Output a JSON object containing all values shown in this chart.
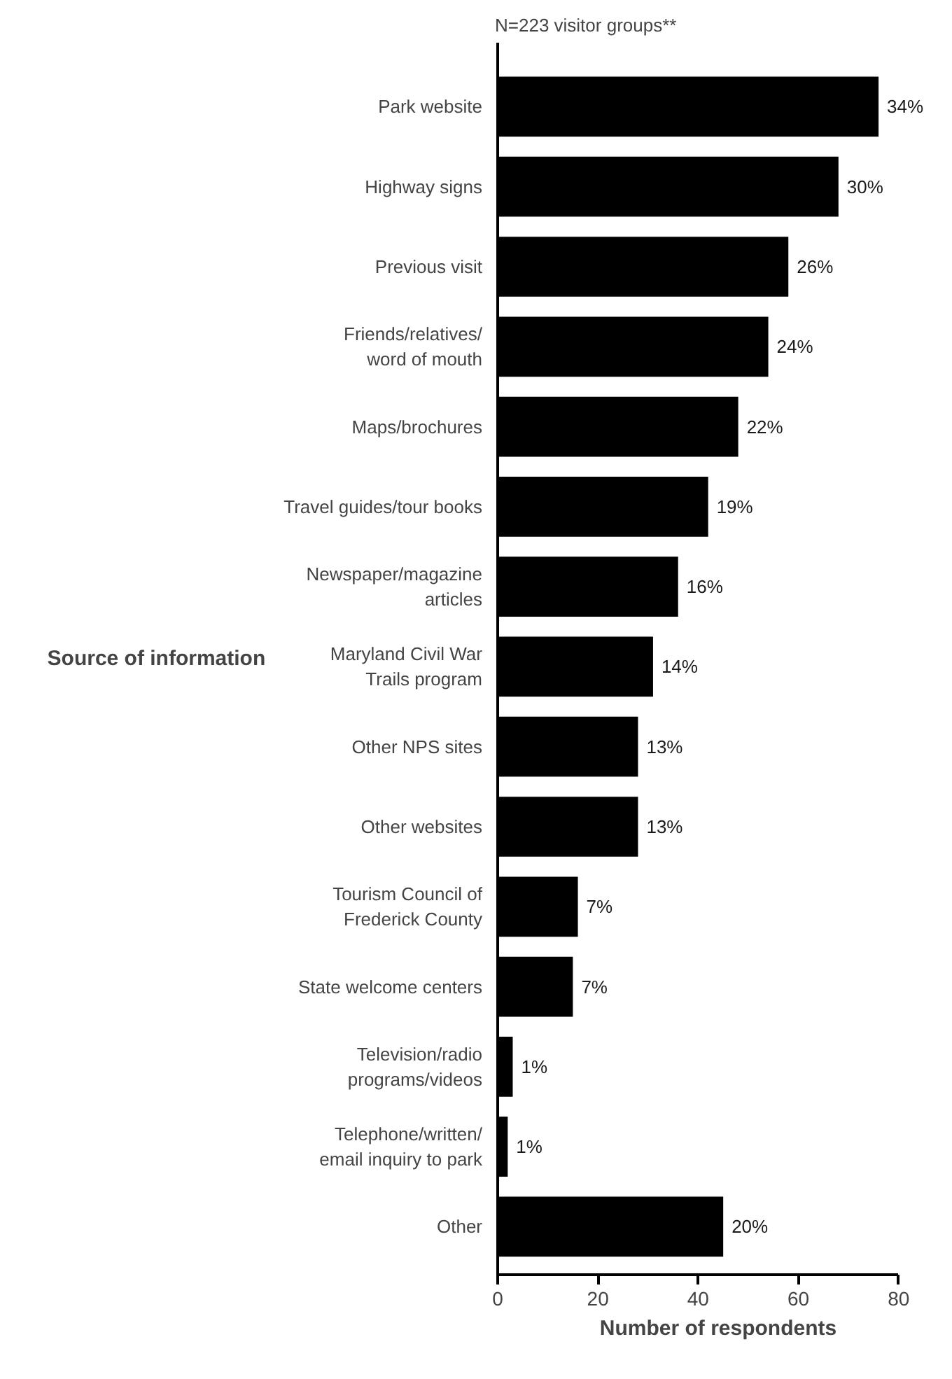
{
  "chart_data": {
    "type": "bar",
    "orientation": "horizontal",
    "title": "N=223 visitor groups**",
    "xlabel": "Number of respondents",
    "ylabel": "Source of information",
    "categories": [
      "Park website",
      "Highway signs",
      "Previous visit",
      "Friends/relatives/\nword of mouth",
      "Maps/brochures",
      "Travel guides/tour books",
      "Newspaper/magazine\narticles",
      "Maryland Civil War\nTrails program",
      "Other NPS sites",
      "Other websites",
      "Tourism Council of\nFrederick County",
      "State welcome centers",
      "Television/radio\nprograms/videos",
      "Telephone/written/\nemail inquiry to park",
      "Other"
    ],
    "values": [
      76,
      68,
      58,
      54,
      48,
      42,
      36,
      31,
      28,
      28,
      16,
      15,
      3,
      2,
      45
    ],
    "annotations": [
      {
        "text": "34%",
        "x": 76,
        "y": "Park website"
      },
      {
        "text": "30%",
        "x": 68,
        "y": "Highway signs"
      },
      {
        "text": "26%",
        "x": 58,
        "y": "Previous visit"
      },
      {
        "text": "24%",
        "x": 54,
        "y": "Friends/relatives/\nword of mouth"
      },
      {
        "text": "22%",
        "x": 48,
        "y": "Maps/brochures"
      },
      {
        "text": "19%",
        "x": 42,
        "y": "Travel guides/tour books"
      },
      {
        "text": "16%",
        "x": 36,
        "y": "Newspaper/magazine\narticles"
      },
      {
        "text": "14%",
        "x": 31,
        "y": "Maryland Civil War\nTrails program"
      },
      {
        "text": "13%",
        "x": 28,
        "y": "Other NPS sites"
      },
      {
        "text": "13%",
        "x": 28,
        "y": "Other websites"
      },
      {
        "text": "7%",
        "x": 16,
        "y": "Tourism Council of\nFrederick County"
      },
      {
        "text": "7%",
        "x": 15,
        "y": "State welcome centers"
      },
      {
        "text": "1%",
        "x": 3,
        "y": "Television/radio\nprograms/videos"
      },
      {
        "text": "1%",
        "x": 2,
        "y": "Telephone/written/\nemail inquiry to park"
      },
      {
        "text": "20%",
        "x": 45,
        "y": "Other"
      }
    ],
    "color": "#000000",
    "xlim": [
      0,
      80
    ],
    "xticks": [
      0,
      20,
      40,
      60,
      80
    ],
    "grid": false
  }
}
